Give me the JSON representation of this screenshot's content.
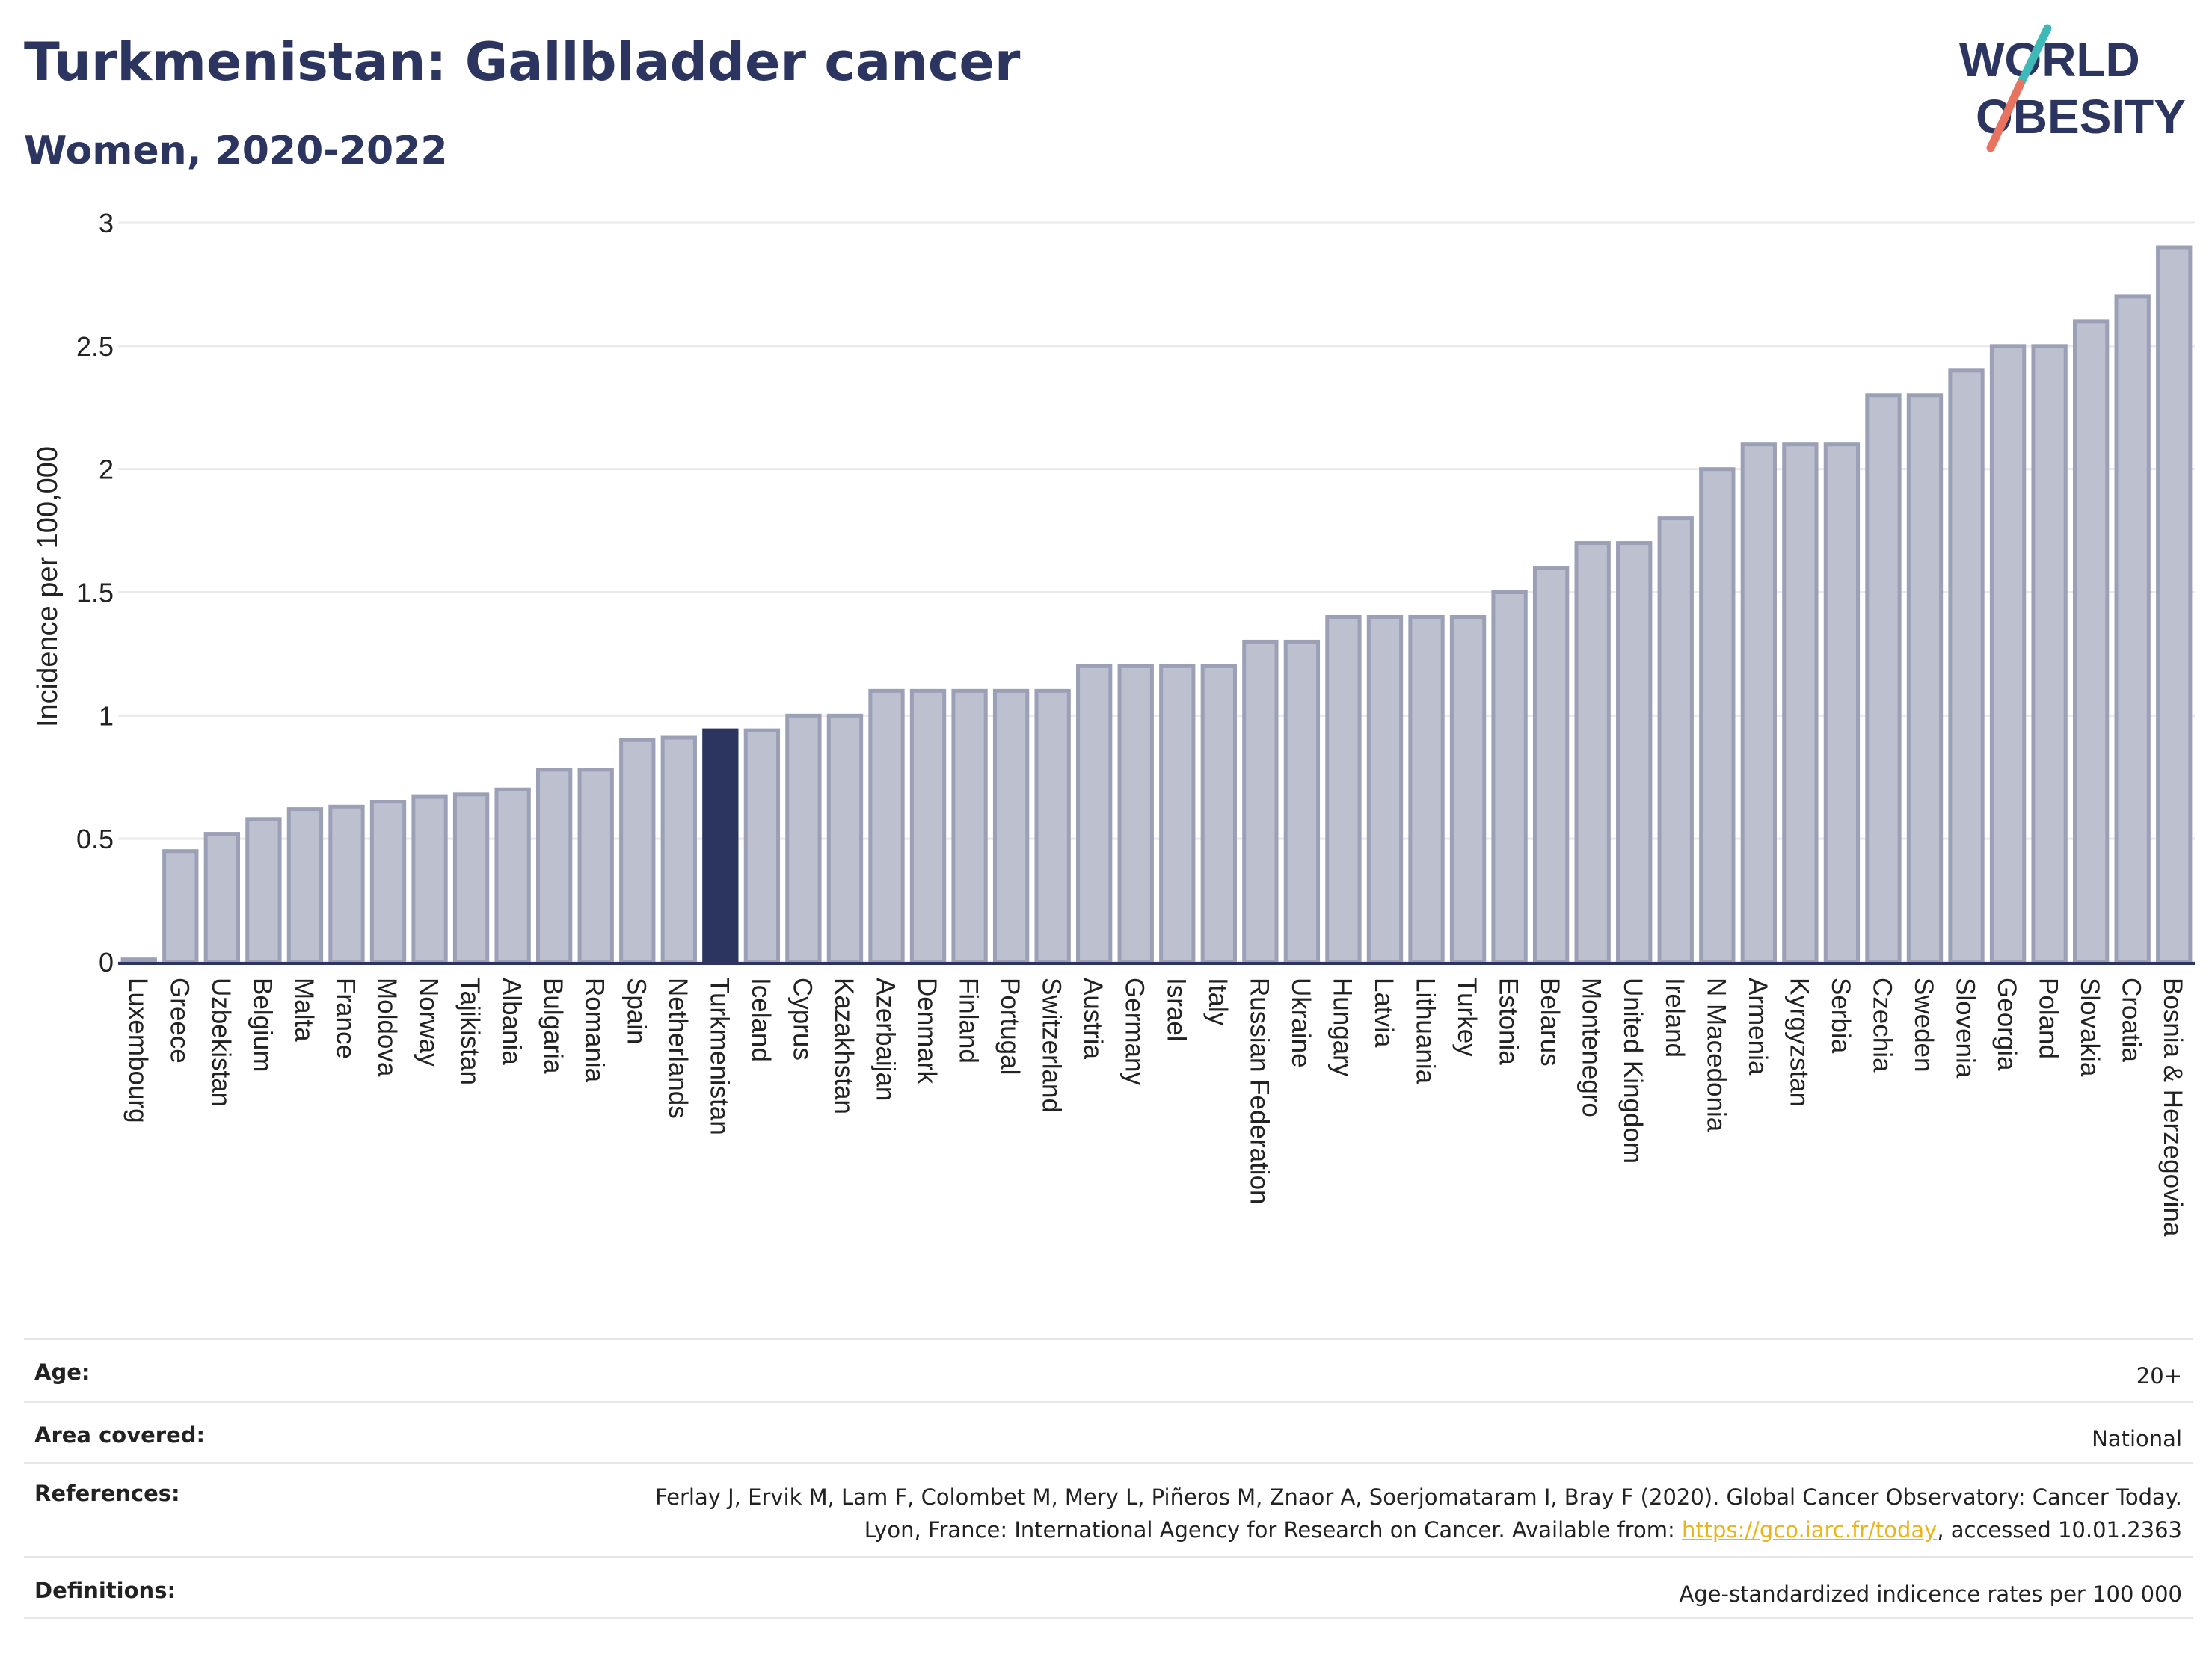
{
  "header": {
    "title": "Turkmenistan: Gallbladder cancer",
    "subtitle": "Women, 2020-2022"
  },
  "logo": {
    "line1": "WORLD",
    "line2": "OBESITY"
  },
  "colors": {
    "highlight": "#2b3560",
    "bar_fill": "#bcc0cf",
    "bar_stroke": "#9ba0b7",
    "accent_teal": "#3fb8b8",
    "accent_coral": "#e8735e",
    "link": "#e9b51d"
  },
  "chart_data": {
    "type": "bar",
    "ylabel": "Incidence per 100,000",
    "ylim": [
      0,
      3
    ],
    "yticks": [
      0,
      0.5,
      1,
      1.5,
      2,
      2.5,
      3
    ],
    "ytick_labels": [
      "0",
      "0.5",
      "1",
      "1.5",
      "2",
      "2.5",
      "3"
    ],
    "grid": true,
    "highlight": "Turkmenistan",
    "categories": [
      "Luxembourg",
      "Greece",
      "Uzbekistan",
      "Belgium",
      "Malta",
      "France",
      "Moldova",
      "Norway",
      "Tajikistan",
      "Albania",
      "Bulgaria",
      "Romania",
      "Spain",
      "Netherlands",
      "Turkmenistan",
      "Iceland",
      "Cyprus",
      "Kazakhstan",
      "Azerbaijan",
      "Denmark",
      "Finland",
      "Portugal",
      "Switzerland",
      "Austria",
      "Germany",
      "Israel",
      "Italy",
      "Russian Federation",
      "Ukraine",
      "Hungary",
      "Latvia",
      "Lithuania",
      "Turkey",
      "Estonia",
      "Belarus",
      "Montenegro",
      "United Kingdom",
      "Ireland",
      "N Macedonia",
      "Armenia",
      "Kyrgyzstan",
      "Serbia",
      "Czechia",
      "Sweden",
      "Slovenia",
      "Georgia",
      "Poland",
      "Slovakia",
      "Croatia",
      "Bosnia & Herzegovina"
    ],
    "values": [
      0.01,
      0.45,
      0.52,
      0.58,
      0.62,
      0.63,
      0.65,
      0.67,
      0.68,
      0.7,
      0.78,
      0.78,
      0.9,
      0.91,
      0.94,
      0.94,
      1.0,
      1.0,
      1.1,
      1.1,
      1.1,
      1.1,
      1.1,
      1.2,
      1.2,
      1.2,
      1.2,
      1.3,
      1.3,
      1.4,
      1.4,
      1.4,
      1.4,
      1.5,
      1.6,
      1.7,
      1.7,
      1.8,
      2.0,
      2.1,
      2.1,
      2.1,
      2.3,
      2.3,
      2.4,
      2.5,
      2.5,
      2.6,
      2.7,
      2.9
    ]
  },
  "info": {
    "age_label": "Age:",
    "age_value": "20+",
    "area_label": "Area covered:",
    "area_value": "National",
    "ref_label": "References:",
    "ref_text_1": "Ferlay J, Ervik M, Lam F, Colombet M, Mery L, Piñeros M, Znaor A, Soerjomataram I, Bray F (2020). Global Cancer Observatory: Cancer Today. Lyon, France: International Agency for Research on Cancer. Available from: ",
    "ref_link": "https://gco.iarc.fr/today",
    "ref_text_2": ", accessed 10.01.2363",
    "def_label": "Definitions:",
    "def_value": "Age-standardized indicence rates per 100 000"
  }
}
